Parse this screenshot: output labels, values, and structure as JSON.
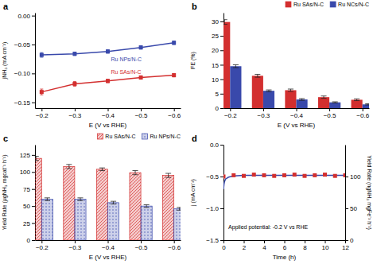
{
  "chart_data": [
    {
      "type": "line",
      "title": "a",
      "xlabel": "E (V vs RHE)",
      "ylabel": "jNH₃ (mA cm⁻²)",
      "x": [
        -0.2,
        -0.3,
        -0.4,
        -0.5,
        -0.6
      ],
      "series": [
        {
          "name": "Ru SAs/N-C",
          "color": "#d32f2f",
          "marker": "square",
          "values": [
            -0.132,
            -0.118,
            -0.113,
            -0.107,
            -0.103
          ],
          "errors": [
            0.005,
            0.004,
            0.003,
            0.003,
            0.003
          ]
        },
        {
          "name": "Ru NPs/N-C",
          "color": "#3949ab",
          "marker": "square",
          "values": [
            -0.068,
            -0.066,
            -0.062,
            -0.055,
            -0.047
          ],
          "errors": [
            0.004,
            0.003,
            0.003,
            0.003,
            0.003
          ]
        }
      ],
      "xlim": [
        -0.18,
        -0.62
      ],
      "xticks": [
        {
          "value": -0.2,
          "label": "−0.2"
        },
        {
          "value": -0.3,
          "label": "−0.3"
        },
        {
          "value": -0.4,
          "label": "−0.4"
        },
        {
          "value": -0.5,
          "label": "−0.5"
        },
        {
          "value": -0.6,
          "label": "−0.6"
        }
      ],
      "ylim": [
        -0.16,
        0.005
      ],
      "yticks": [
        {
          "value": -0.15,
          "label": "−0.15"
        },
        {
          "value": -0.1,
          "label": "−0.10"
        },
        {
          "value": -0.05,
          "label": "−0.05"
        },
        {
          "value": 0,
          "label": "0.00"
        }
      ]
    },
    {
      "type": "bar",
      "title": "b",
      "xlabel": "E (V vs RHE)",
      "ylabel": "FE (%)",
      "x": [
        -0.2,
        -0.3,
        -0.4,
        -0.5,
        -0.6
      ],
      "series": [
        {
          "name": "Ru SAs/N-C",
          "color": "#d32f2f",
          "values": [
            29.8,
            11.2,
            6.2,
            3.8,
            2.9
          ],
          "errors": [
            0.8,
            0.5,
            0.4,
            0.4,
            0.3
          ]
        },
        {
          "name": "Ru NCs/N-C",
          "color": "#3949ab",
          "values": [
            14.5,
            6.0,
            3.0,
            2.0,
            1.3
          ],
          "errors": [
            0.5,
            0.3,
            0.3,
            0.2,
            0.2
          ]
        }
      ],
      "legend": "upper right",
      "xlim": [
        -0.18,
        -0.62
      ],
      "xticks": [
        {
          "value": -0.2,
          "label": "−0.2"
        },
        {
          "value": -0.3,
          "label": "−0.3"
        },
        {
          "value": -0.4,
          "label": "−0.4"
        },
        {
          "value": -0.5,
          "label": "−0.5"
        },
        {
          "value": -0.6,
          "label": "−0.6"
        }
      ],
      "ylim": [
        0,
        33
      ],
      "yticks": [
        0,
        5,
        10,
        15,
        20,
        25,
        30
      ]
    },
    {
      "type": "bar",
      "title": "c",
      "xlabel": "E (V vs RHE)",
      "ylabel": "Yield Rate (μgNH₃ mgcat⁻¹ h⁻¹)",
      "x": [
        -0.2,
        -0.3,
        -0.4,
        -0.5,
        -0.6
      ],
      "series": [
        {
          "name": "Ru SAs/N-C",
          "color": "#d32f2f",
          "values": [
            120,
            108,
            104,
            99,
            95
          ],
          "errors": [
            3,
            3,
            2,
            3,
            3
          ]
        },
        {
          "name": "Ru NPs/N-C",
          "color": "#3949ab",
          "values": [
            60,
            60,
            55,
            50,
            46
          ],
          "errors": [
            2,
            2,
            2,
            2,
            2
          ]
        }
      ],
      "legend": "upper right",
      "xlim": [
        -0.18,
        -0.62
      ],
      "xticks": [
        {
          "value": -0.2,
          "label": "−0.2"
        },
        {
          "value": -0.3,
          "label": "−0.3"
        },
        {
          "value": -0.4,
          "label": "−0.4"
        },
        {
          "value": -0.5,
          "label": "−0.5"
        },
        {
          "value": -0.6,
          "label": "−0.6"
        }
      ],
      "ylim": [
        0,
        140
      ],
      "yticks": [
        0,
        25,
        50,
        75,
        100,
        125
      ]
    },
    {
      "type": "line",
      "title": "d",
      "xlabel": "Time (h)",
      "ylabel": "j (mA cm⁻²)",
      "y2label": "Yield Rate (ngNH₃ mgFe⁻¹ h⁻¹)",
      "annotations": [
        "Applied potential: -0.2 V vs RHE"
      ],
      "series": [
        {
          "type": "line",
          "color": "#3949ab",
          "x": [
            0,
            0.05,
            0.1,
            0.2,
            0.5,
            1.0,
            2.0,
            3.0,
            4.0,
            5.0,
            6.0,
            7.0,
            8.0,
            9.0,
            10.0,
            11.0,
            12.0
          ],
          "values": [
            -0.7,
            -0.62,
            -0.58,
            -0.54,
            -0.51,
            -0.49,
            -0.48,
            -0.48,
            -0.48,
            -0.48,
            -0.48,
            -0.48,
            -0.48,
            -0.48,
            -0.48,
            -0.48,
            -0.48
          ]
        },
        {
          "type": "scatter",
          "color": "#d32f2f",
          "marker": "square",
          "axis": "y2",
          "x": [
            0,
            1,
            2,
            3,
            4,
            5,
            6,
            7,
            8,
            9,
            10,
            11,
            12
          ],
          "values": [
            100,
            102,
            101,
            103,
            102,
            101,
            102,
            103,
            101,
            102,
            103,
            101,
            102
          ]
        }
      ],
      "xlim": [
        0,
        12
      ],
      "xticks": [
        0,
        2,
        4,
        6,
        8,
        10,
        12
      ],
      "ylim": [
        -1.5,
        0.0
      ],
      "yticks": [
        {
          "value": -1.5,
          "label": "−1.5"
        },
        {
          "value": -1.0,
          "label": "−1.0"
        },
        {
          "value": -0.5,
          "label": "−0.5"
        },
        {
          "value": 0,
          "label": "0.0"
        }
      ],
      "y2lim": [
        0,
        150
      ],
      "y2ticks": [
        0,
        50,
        100
      ]
    }
  ]
}
